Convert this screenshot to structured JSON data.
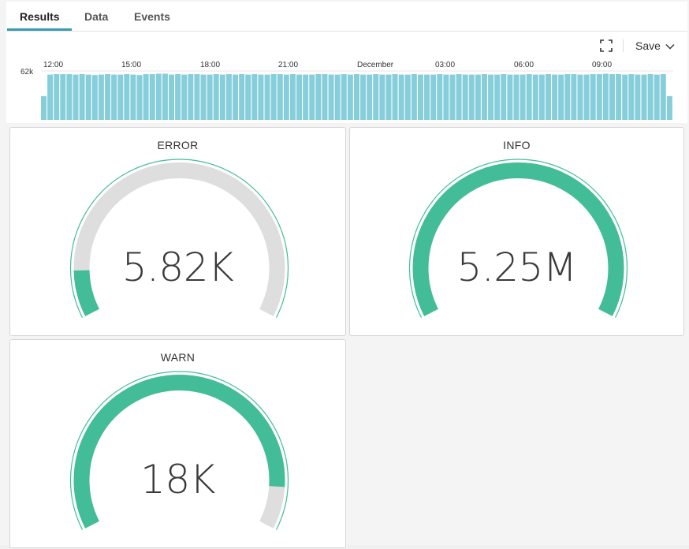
{
  "tabs": [
    {
      "label": "Results",
      "active": true
    },
    {
      "label": "Data",
      "active": false
    },
    {
      "label": "Events",
      "active": false
    }
  ],
  "toolbar": {
    "fullscreen_icon": "fullscreen-icon",
    "save_label": "Save",
    "save_icon": "chevron-down-icon"
  },
  "histogram": {
    "y_label": "62k",
    "x_ticks": [
      "12:00",
      "15:00",
      "18:00",
      "21:00",
      "December",
      "03:00",
      "06:00",
      "09:00"
    ],
    "bar_color": "#87cedb",
    "bars": [
      0.52,
      0.99,
      1.0,
      1.0,
      1.0,
      0.99,
      1.0,
      0.99,
      0.98,
      0.99,
      1.0,
      0.99,
      0.99,
      1.0,
      0.99,
      0.98,
      1.0,
      1.0,
      1.01,
      1.01,
      0.99,
      1.0,
      0.99,
      1.0,
      1.0,
      0.99,
      0.99,
      1.0,
      0.99,
      1.0,
      0.99,
      1.0,
      0.99,
      1.0,
      0.99,
      0.99,
      1.0,
      1.0,
      0.99,
      1.0,
      0.99,
      0.99,
      0.99,
      1.0,
      1.0,
      0.99,
      0.99,
      1.0,
      0.99,
      1.0,
      0.99,
      0.99,
      1.0,
      0.99,
      0.99,
      1.0,
      0.99,
      0.99,
      1.0,
      0.99,
      0.99,
      0.99,
      1.0,
      0.99,
      0.99,
      1.0,
      0.99,
      0.99,
      0.99,
      1.0,
      0.99,
      0.99,
      1.0,
      0.99,
      0.99,
      0.99,
      1.0,
      0.99,
      0.99,
      1.0,
      0.99,
      0.99,
      1.0,
      1.0,
      0.99,
      0.99,
      1.0,
      1.0,
      1.01,
      1.0,
      1.0,
      0.99,
      1.0,
      0.99,
      0.99,
      1.0,
      0.99,
      1.0,
      0.52
    ]
  },
  "gauges": [
    {
      "title": "ERROR",
      "value": "5.82K",
      "fraction": 0.11
    },
    {
      "title": "INFO",
      "value": "5.25M",
      "fraction": 1.0
    },
    {
      "title": "WARN",
      "value": "18K",
      "fraction": 0.9
    }
  ],
  "colors": {
    "accent": "#3a9ab0",
    "gauge_fill": "#42bd97",
    "gauge_track": "#dedede"
  }
}
